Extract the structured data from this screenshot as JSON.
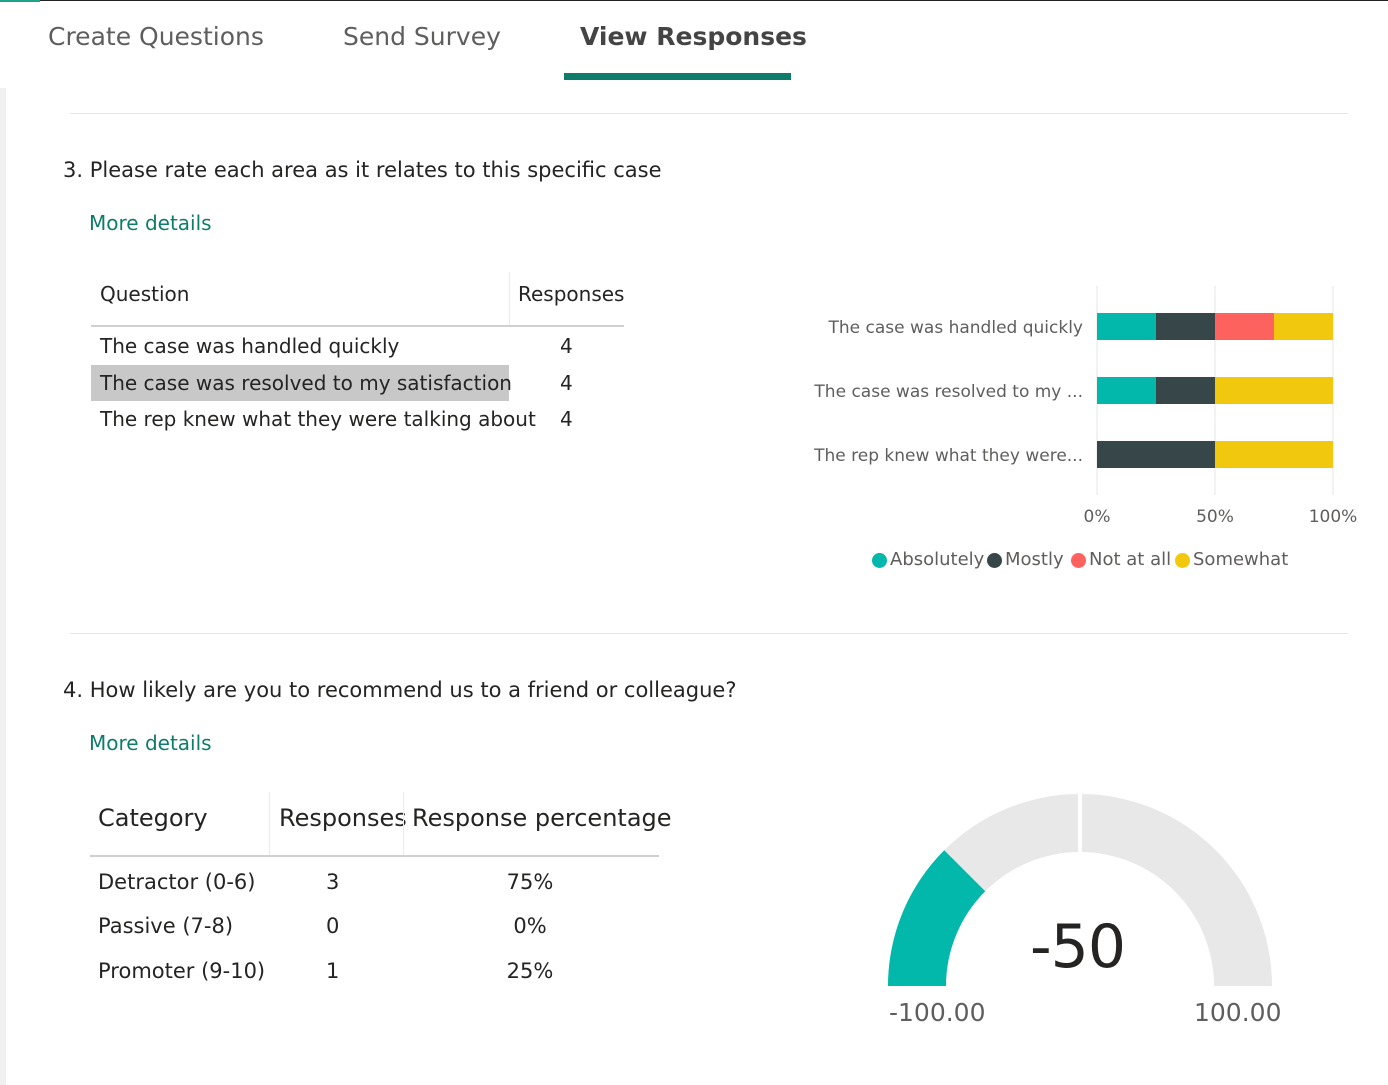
{
  "tabs": [
    {
      "label": "Create Questions"
    },
    {
      "label": "Send Survey"
    },
    {
      "label": "View Responses",
      "active": true
    }
  ],
  "colors": {
    "accent": "#0e7c6b",
    "absolutely": "#01b8aa",
    "mostly": "#374649",
    "not_at_all": "#fd625e",
    "somewhat": "#f2c80f",
    "gauge_track": "#e8e8e8"
  },
  "question3": {
    "title": "3. Please rate each area as it relates to this specific case",
    "more_details": "More details",
    "table": {
      "headers": [
        "Question",
        "Responses"
      ],
      "rows": [
        {
          "question": "The case was handled quickly",
          "responses": "4",
          "selected": false
        },
        {
          "question": "The case was resolved to my satisfaction",
          "responses": "4",
          "selected": true
        },
        {
          "question": "The rep knew what they were talking about",
          "responses": "4",
          "selected": false
        }
      ]
    }
  },
  "question4": {
    "title": "4. How likely are you to recommend us to a friend or colleague?",
    "more_details": "More details",
    "table": {
      "headers": [
        "Category",
        "Responses",
        "Response percentage"
      ],
      "rows": [
        {
          "category": "Detractor (0-6)",
          "responses": "3",
          "percentage": "75%"
        },
        {
          "category": "Passive (7-8)",
          "responses": "0",
          "percentage": "0%"
        },
        {
          "category": "Promoter (9-10)",
          "responses": "1",
          "percentage": "25%"
        }
      ]
    },
    "gauge": {
      "value_label": "-50",
      "value": -50,
      "min_label": "-100.00",
      "max_label": "100.00",
      "min": -100,
      "max": 100
    }
  },
  "chart_data": [
    {
      "type": "bar",
      "orientation": "horizontal",
      "stacked": "100%",
      "categories": [
        "The case was handled quickly",
        "The case was resolved to my ...",
        "The rep knew what they were..."
      ],
      "series": [
        {
          "name": "Absolutely",
          "color": "#01b8aa",
          "values": [
            25,
            25,
            0
          ]
        },
        {
          "name": "Mostly",
          "color": "#374649",
          "values": [
            25,
            25,
            50
          ]
        },
        {
          "name": "Not at all",
          "color": "#fd625e",
          "values": [
            25,
            0,
            0
          ]
        },
        {
          "name": "Somewhat",
          "color": "#f2c80f",
          "values": [
            25,
            50,
            50
          ]
        }
      ],
      "xticks": [
        "0%",
        "50%",
        "100%"
      ],
      "xlim": [
        0,
        100
      ],
      "grid": true,
      "legend": "bottom"
    }
  ]
}
